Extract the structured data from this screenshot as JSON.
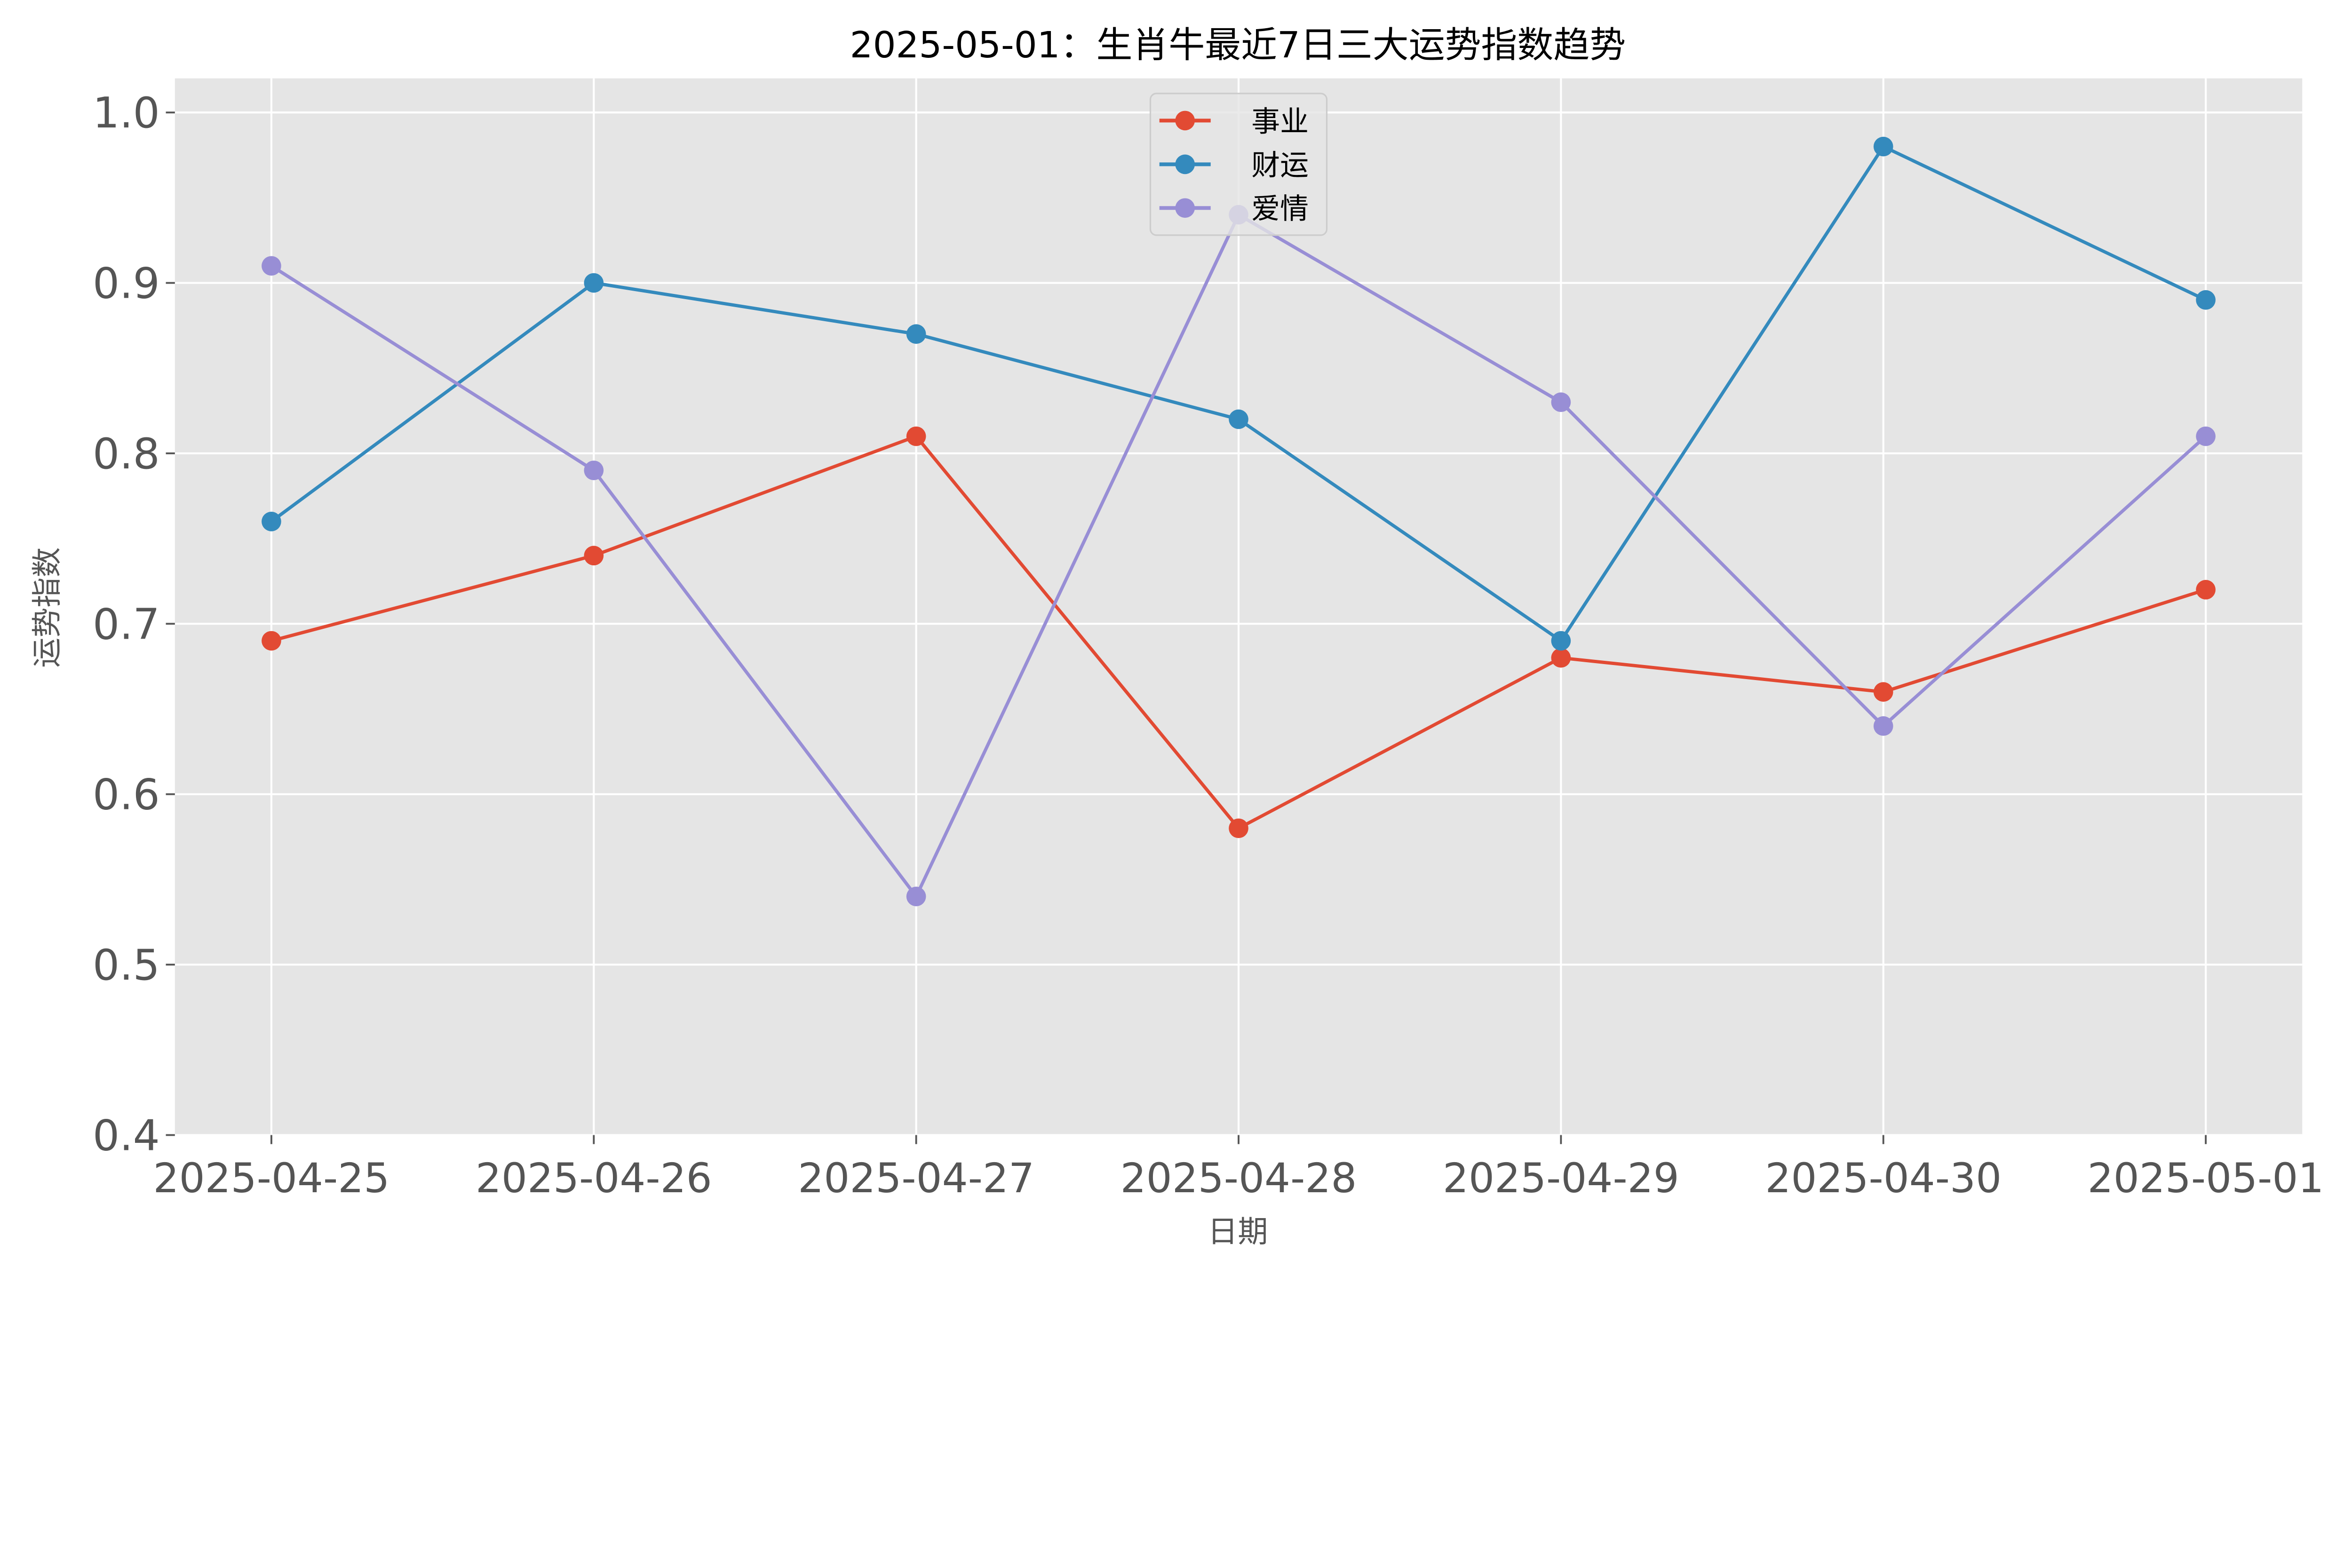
{
  "chart_data": {
    "type": "line",
    "title": "2025-05-01：生肖牛最近7日三大运势指数趋势",
    "xlabel": "日期",
    "ylabel": "运势指数",
    "categories": [
      "2025-04-25",
      "2025-04-26",
      "2025-04-27",
      "2025-04-28",
      "2025-04-29",
      "2025-04-30",
      "2025-05-01"
    ],
    "ylim": [
      0.4,
      1.02
    ],
    "yticks": [
      "0.4",
      "0.5",
      "0.6",
      "0.7",
      "0.8",
      "0.9",
      "1.0"
    ],
    "grid": true,
    "legend_position": "top-center",
    "series": [
      {
        "name": "事业",
        "color": "#E24A33",
        "values": [
          0.69,
          0.74,
          0.81,
          0.58,
          0.68,
          0.66,
          0.72
        ]
      },
      {
        "name": "财运",
        "color": "#348ABD",
        "values": [
          0.76,
          0.9,
          0.87,
          0.82,
          0.69,
          0.98,
          0.89
        ]
      },
      {
        "name": "爱情",
        "color": "#988ED5",
        "values": [
          0.91,
          0.79,
          0.54,
          0.94,
          0.83,
          0.64,
          0.81
        ]
      }
    ],
    "background": "#E5E5E5"
  }
}
